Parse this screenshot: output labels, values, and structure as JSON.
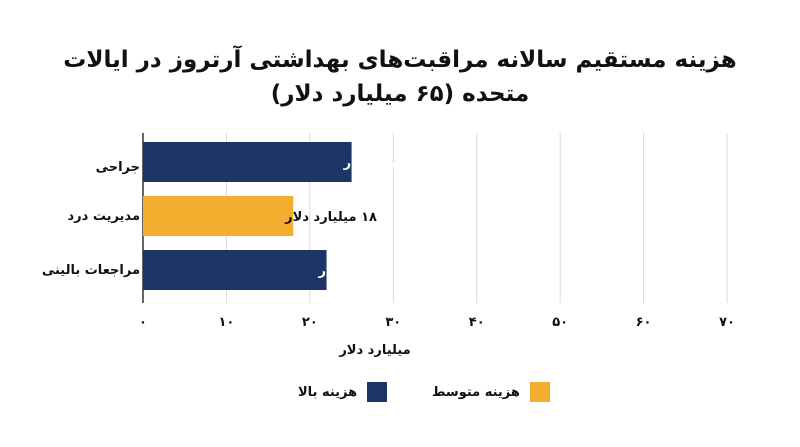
{
  "chart_data": {
    "type": "bar",
    "orientation": "horizontal",
    "title_line1": "هزینه مستقیم سالانه مراقبت‌های بهداشتی آرتروز در ایالات",
    "title_line2": "متحده (۶۵ میلیارد دلار)",
    "xlabel": "میلیارد دلار",
    "xlim": [
      0,
      70
    ],
    "xticks": [
      0,
      10,
      20,
      30,
      40,
      50,
      60,
      70
    ],
    "xtick_labels": [
      "۰",
      "۱۰",
      "۲۰",
      "۳۰",
      "۴۰",
      "۵۰",
      "۶۰",
      "۷۰"
    ],
    "grid": true,
    "categories": [
      "جراحی",
      "مدیریت درد",
      "مراجعات بالینی"
    ],
    "values": [
      25,
      18,
      22
    ],
    "data_labels": [
      "۲۵ میلیارد دلار",
      "۱۸ میلیارد دلار",
      "۲۲ میلیارد دلار"
    ],
    "series_of_bar": [
      "high",
      "medium",
      "high"
    ],
    "legend": [
      {
        "key": "high",
        "label": "هزینه بالا",
        "color": "#1b3567"
      },
      {
        "key": "medium",
        "label": "هزینه متوسط",
        "color": "#f2ae2e"
      }
    ],
    "legend_position": "bottom"
  },
  "colors": {
    "high": "#1b3567",
    "medium": "#f2ae2e",
    "grid": "#d9d9d9",
    "axis": "#333333"
  }
}
